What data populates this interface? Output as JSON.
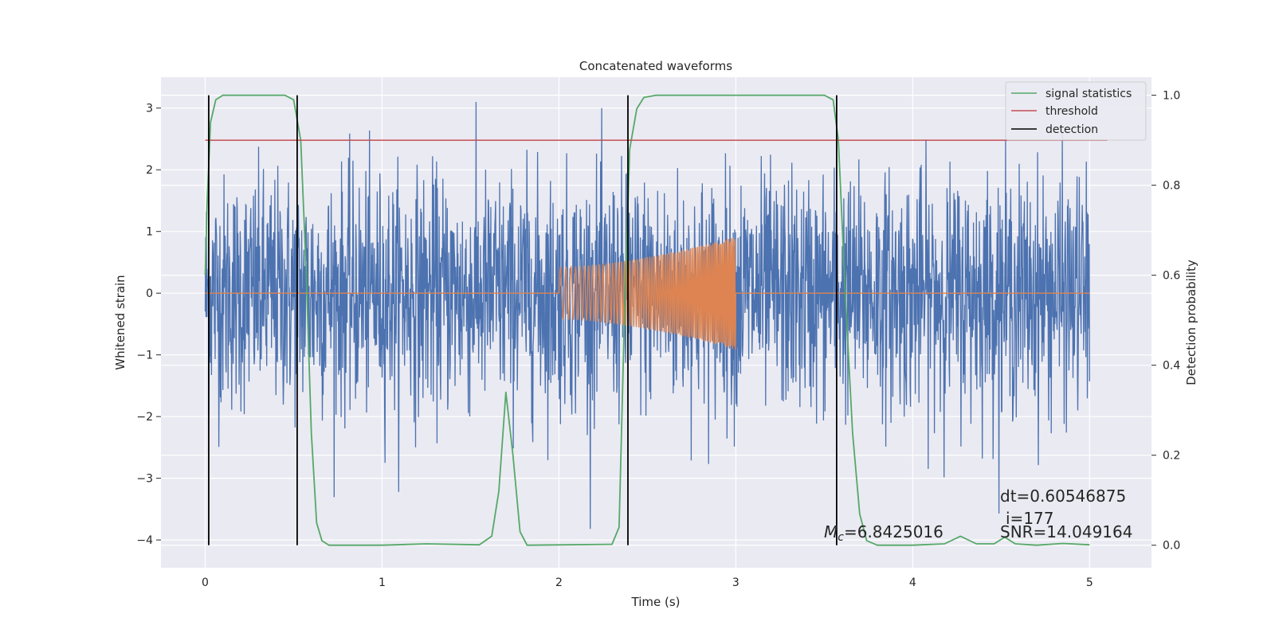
{
  "chart_data": {
    "type": "line",
    "title": "Concatenated waveforms",
    "xlabel": "Time (s)",
    "ylabel": "Whitened strain",
    "ylabel_right": "Detection probability",
    "xlim": [
      -0.25,
      5.35
    ],
    "ylim": [
      -4.45,
      3.5
    ],
    "ylim_right": [
      -0.05,
      1.04
    ],
    "x_ticks": [
      0,
      1,
      2,
      3,
      4,
      5
    ],
    "y_ticks": [
      -4,
      -3,
      -2,
      -1,
      0,
      1,
      2,
      3
    ],
    "y_right_ticks": [
      0.0,
      0.2,
      0.4,
      0.6,
      0.8,
      1.0
    ],
    "x_tick_labels": [
      "0",
      "1",
      "2",
      "3",
      "4",
      "5"
    ],
    "y_tick_labels": [
      "−4",
      "−3",
      "−2",
      "−1",
      "0",
      "1",
      "2",
      "3"
    ],
    "y_right_tick_labels": [
      "0.0",
      "0.2",
      "0.4",
      "0.6",
      "0.8",
      "1.0"
    ],
    "grid": true,
    "legend_position": "top-right",
    "colors": {
      "strain": "#4c72b0",
      "template": "#dd8452",
      "signal_statistics": "#55a868",
      "threshold": "#c44e52",
      "detection": "#000000",
      "background": "#eaeaf2",
      "grid": "#ffffff"
    },
    "legend": [
      {
        "label": "signal statistics",
        "color": "#55a868"
      },
      {
        "label": "threshold",
        "color": "#c44e52"
      },
      {
        "label": "detection",
        "color": "#000000"
      }
    ],
    "strain": {
      "x_range": [
        0,
        5
      ],
      "approx_range": [
        -4.2,
        3.1
      ]
    },
    "template": {
      "x_start": 2.0,
      "x_end": 3.0,
      "amp_start": 0.42,
      "amp_end": 0.92
    },
    "signal_statistics": {
      "axis": "right",
      "points": [
        [
          0.0,
          0.6
        ],
        [
          0.01,
          0.75
        ],
        [
          0.03,
          0.94
        ],
        [
          0.06,
          0.99
        ],
        [
          0.1,
          1.0
        ],
        [
          0.45,
          1.0
        ],
        [
          0.5,
          0.99
        ],
        [
          0.54,
          0.9
        ],
        [
          0.57,
          0.62
        ],
        [
          0.6,
          0.25
        ],
        [
          0.63,
          0.05
        ],
        [
          0.66,
          0.01
        ],
        [
          0.7,
          0.0
        ],
        [
          1.0,
          0.0
        ],
        [
          1.25,
          0.003
        ],
        [
          1.55,
          0.001
        ],
        [
          1.62,
          0.02
        ],
        [
          1.66,
          0.12
        ],
        [
          1.7,
          0.34
        ],
        [
          1.74,
          0.2
        ],
        [
          1.78,
          0.03
        ],
        [
          1.82,
          0.0
        ],
        [
          2.3,
          0.002
        ],
        [
          2.34,
          0.04
        ],
        [
          2.37,
          0.5
        ],
        [
          2.4,
          0.88
        ],
        [
          2.44,
          0.97
        ],
        [
          2.48,
          0.995
        ],
        [
          2.55,
          1.0
        ],
        [
          3.5,
          1.0
        ],
        [
          3.55,
          0.99
        ],
        [
          3.58,
          0.9
        ],
        [
          3.62,
          0.55
        ],
        [
          3.66,
          0.25
        ],
        [
          3.7,
          0.07
        ],
        [
          3.74,
          0.01
        ],
        [
          3.8,
          0.0
        ],
        [
          4.0,
          0.0
        ],
        [
          4.18,
          0.003
        ],
        [
          4.27,
          0.02
        ],
        [
          4.36,
          0.003
        ],
        [
          4.46,
          0.003
        ],
        [
          4.52,
          0.018
        ],
        [
          4.58,
          0.003
        ],
        [
          4.7,
          0.0
        ],
        [
          4.85,
          0.004
        ],
        [
          5.0,
          0.001
        ]
      ]
    },
    "threshold": {
      "axis": "right",
      "value": 0.9,
      "x_range": [
        0,
        5.1
      ]
    },
    "detections": [
      0.02,
      0.52,
      2.39,
      3.57
    ],
    "annotations": {
      "dt": "dt=0.60546875",
      "i": "i=177",
      "mc_symbol": "M",
      "mc_subscript": "c",
      "mc_value": "=6.8425016",
      "snr": "SNR=14.049164"
    }
  }
}
